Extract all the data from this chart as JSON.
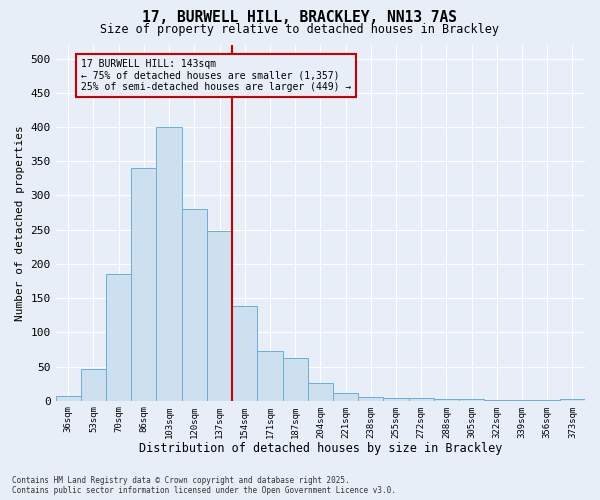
{
  "title_line1": "17, BURWELL HILL, BRACKLEY, NN13 7AS",
  "title_line2": "Size of property relative to detached houses in Brackley",
  "xlabel": "Distribution of detached houses by size in Brackley",
  "ylabel": "Number of detached properties",
  "categories": [
    "36sqm",
    "53sqm",
    "70sqm",
    "86sqm",
    "103sqm",
    "120sqm",
    "137sqm",
    "154sqm",
    "171sqm",
    "187sqm",
    "204sqm",
    "221sqm",
    "238sqm",
    "255sqm",
    "272sqm",
    "288sqm",
    "305sqm",
    "322sqm",
    "339sqm",
    "356sqm",
    "373sqm"
  ],
  "values": [
    7,
    47,
    185,
    340,
    400,
    280,
    248,
    138,
    72,
    63,
    26,
    11,
    6,
    4,
    4,
    2,
    2,
    1,
    1,
    1,
    2
  ],
  "bar_color": "#cce0f0",
  "bar_edge_color": "#6baed6",
  "background_color": "#e8eef8",
  "grid_color": "#ffffff",
  "vline_x": 6.5,
  "vline_color": "#cc0000",
  "annotation_title": "17 BURWELL HILL: 143sqm",
  "annotation_line2": "← 75% of detached houses are smaller (1,357)",
  "annotation_line3": "25% of semi-detached houses are larger (449) →",
  "annotation_box_color": "#cc0000",
  "ylim": [
    0,
    520
  ],
  "yticks": [
    0,
    50,
    100,
    150,
    200,
    250,
    300,
    350,
    400,
    450,
    500
  ],
  "footnote_line1": "Contains HM Land Registry data © Crown copyright and database right 2025.",
  "footnote_line2": "Contains public sector information licensed under the Open Government Licence v3.0."
}
